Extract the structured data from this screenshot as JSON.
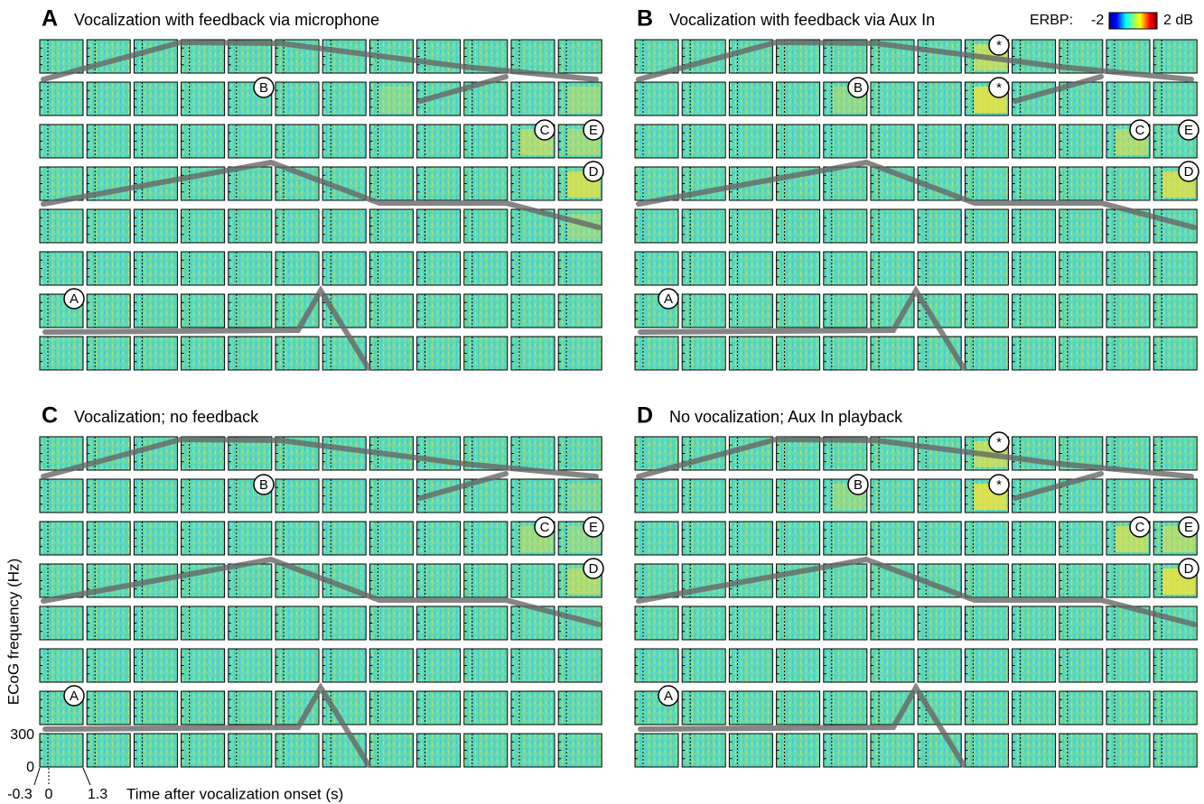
{
  "panels": [
    {
      "letter": "A",
      "title": "Vocalization with feedback via microphone",
      "markers": [
        "B",
        "C",
        "E",
        "D",
        "A"
      ]
    },
    {
      "letter": "B",
      "title": "Vocalization with feedback via Aux In",
      "markers": [
        "*",
        "*",
        "B",
        "C",
        "E",
        "D",
        "A"
      ]
    },
    {
      "letter": "C",
      "title": "Vocalization; no feedback",
      "markers": [
        "B",
        "C",
        "E",
        "D",
        "A"
      ]
    },
    {
      "letter": "D",
      "title": "No vocalization; Aux In playback",
      "markers": [
        "*",
        "*",
        "B",
        "C",
        "E",
        "D",
        "A"
      ]
    }
  ],
  "colorbar": {
    "label": "ERBP:",
    "min": "-2",
    "max": "2 dB"
  },
  "axes": {
    "y_label": "ECoG frequency (Hz)",
    "y_ticks": [
      "300",
      "0"
    ],
    "x_ticks": [
      "-0.3",
      "0",
      "1.3"
    ],
    "x_label": "Time after vocalization onset (s)"
  }
}
